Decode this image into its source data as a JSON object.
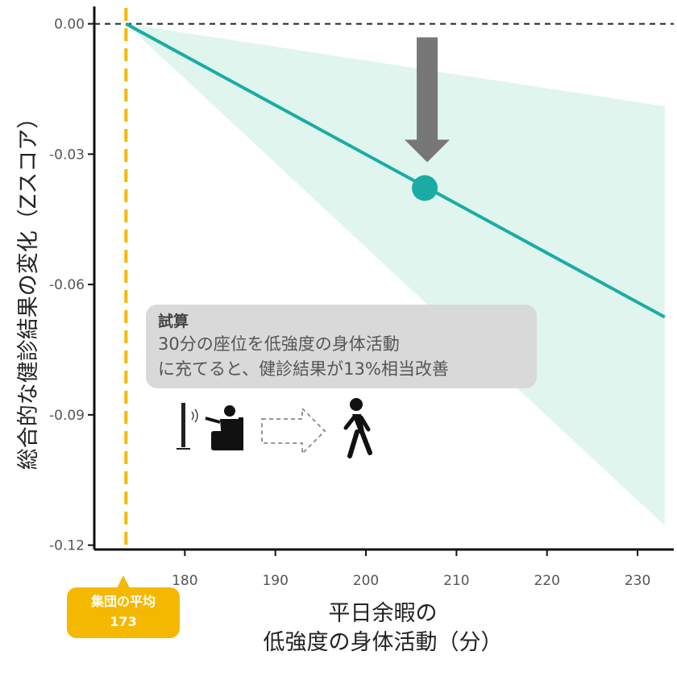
{
  "chart_data": {
    "type": "line",
    "xlabel_line1": "平日余暇の",
    "xlabel_line2": "低強度の身体活動（分）",
    "ylabel": "総合的な健診結果の変化（Zスコア）",
    "xlim": [
      170,
      234
    ],
    "ylim": [
      -0.121,
      0.004
    ],
    "x_ticks": [
      180,
      190,
      200,
      210,
      220,
      230
    ],
    "x_tick_labels": [
      "180",
      "190",
      "200",
      "210",
      "220",
      "230"
    ],
    "y_ticks": [
      0.0,
      -0.03,
      -0.06,
      -0.09,
      -0.12
    ],
    "y_tick_labels": [
      "0.00",
      "-0.03",
      "-0.06",
      "-0.09",
      "-0.12"
    ],
    "reference_line_y": 0.0,
    "baseline_x": 173.5,
    "series": [
      {
        "x": [
          173.5,
          233
        ],
        "y": [
          0.0,
          -0.0675
        ],
        "color": "#1aaca4"
      }
    ],
    "confidence_band": {
      "x": [
        173.5,
        233
      ],
      "upper": [
        0.0,
        -0.019
      ],
      "lower": [
        0.0,
        -0.1155
      ],
      "color": "#dff5ee"
    },
    "highlight_point": {
      "x": 206.5,
      "y": -0.0378,
      "color": "#1aaca4"
    }
  },
  "annotation": {
    "title": "試算",
    "line1": "30分の座位を低強度の身体活動",
    "line2": "に充てると、健診結果が13%相当改善"
  },
  "badge": {
    "label": "集団の平均",
    "value": "173",
    "color": "#f5b800"
  },
  "colors": {
    "baseline": "#f5b800",
    "arrow": "#777777",
    "annotation_bg": "#d9d9d9"
  },
  "icons": [
    "tv-icon",
    "person-watching-tv-icon",
    "dashed-arrow-icon",
    "walking-person-icon"
  ]
}
